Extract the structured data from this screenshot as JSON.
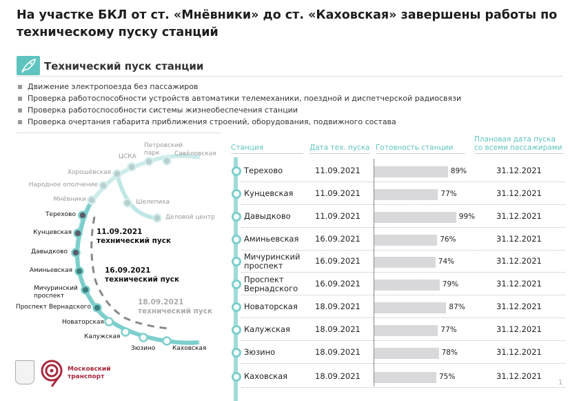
{
  "title": "На участке БКЛ от ст. «Мнёвники» до ст. «Каховская» завершены работы по техническому пуску станций",
  "section": {
    "icon": "rocket-icon",
    "title": "Технический пуск станции"
  },
  "bullets": [
    "Движение электропоезда без пассажиров",
    "Проверка работоспособности устройств автоматики телемеханики, поездной и диспетчерской радиосвязи",
    "Проверка работоспособности системы жизнеобеспечения станции",
    "Проверка очертания габарита приближения строений, оборудования, подвижного состава"
  ],
  "map": {
    "upper_stations": [
      "Мнёвники",
      "Народное ополчение",
      "Хорошёвская",
      "ЦСКА",
      "Петровский парк",
      "Савёловская"
    ],
    "branch_stations": [
      "Шелепиха",
      "Деловой центр"
    ],
    "stations": [
      "Терехово",
      "Кунцевская",
      "Давыдково",
      "Аминьевская",
      "Мичуринский проспект",
      "Проспект Вернадского",
      "Новаторская",
      "Калужская",
      "Зюзино",
      "Каховская"
    ],
    "phases": [
      {
        "date": "11.09.2021",
        "label": "технический пуск"
      },
      {
        "date": "16.09.2021",
        "label": "технический пуск"
      },
      {
        "date": "18.09.2021",
        "label": "технический пуск"
      }
    ]
  },
  "table": {
    "headers": [
      "Станция",
      "Дата тех. пуска",
      "Готовность станции",
      "Плановая дата пуска со всеми пассажирами"
    ],
    "rows": [
      {
        "station": "Терехово",
        "date": "11.09.2021",
        "readiness": 89,
        "readiness_label": "89%",
        "plan": "31.12.2021"
      },
      {
        "station": "Кунцевская",
        "date": "11.09.2021",
        "readiness": 77,
        "readiness_label": "77%",
        "plan": "31.12.2021"
      },
      {
        "station": "Давыдково",
        "date": "11.09.2021",
        "readiness": 99,
        "readiness_label": "99%",
        "plan": "31.12.2021"
      },
      {
        "station": "Аминьевская",
        "date": "16.09.2021",
        "readiness": 76,
        "readiness_label": "76%",
        "plan": "31.12.2021"
      },
      {
        "station": "Мичуринский проспект",
        "date": "16.09.2021",
        "readiness": 74,
        "readiness_label": "74%",
        "plan": "31.12.2021"
      },
      {
        "station": "Проспект Вернадского",
        "date": "16.09.2021",
        "readiness": 79,
        "readiness_label": "79%",
        "plan": "31.12.2021"
      },
      {
        "station": "Новаторская",
        "date": "18.09.2021",
        "readiness": 87,
        "readiness_label": "87%",
        "plan": "31.12.2021"
      },
      {
        "station": "Калужская",
        "date": "18.09.2021",
        "readiness": 77,
        "readiness_label": "77%",
        "plan": "31.12.2021"
      },
      {
        "station": "Зюзино",
        "date": "18.09.2021",
        "readiness": 78,
        "readiness_label": "78%",
        "plan": "31.12.2021"
      },
      {
        "station": "Каховская",
        "date": "18.09.2021",
        "readiness": 75,
        "readiness_label": "75%",
        "plan": "31.12.2021"
      }
    ]
  },
  "footer": {
    "logo_text": "Московский транспорт",
    "page": "1"
  },
  "colors": {
    "accent": "#5fc4c0",
    "line": "#7ccfcc",
    "brand": "#a8283c",
    "bar": "#d9d9dc"
  }
}
